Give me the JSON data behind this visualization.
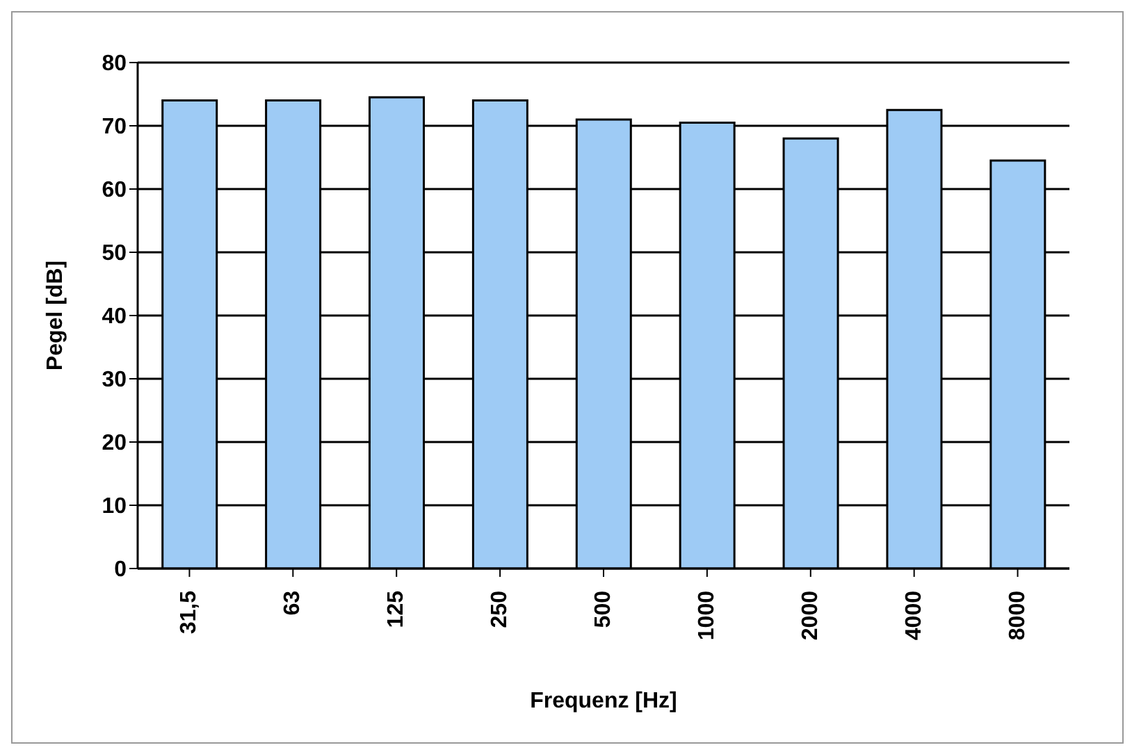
{
  "chart_data": {
    "type": "bar",
    "xlabel": "Frequenz [Hz]",
    "ylabel": "Pegel [dB]",
    "categories": [
      "31,5",
      "63",
      "125",
      "250",
      "500",
      "1000",
      "2000",
      "4000",
      "8000"
    ],
    "series": [
      {
        "color": "#9ecbf5",
        "values": [
          74,
          74,
          74.5,
          74,
          71,
          70.5,
          68,
          72.5,
          64.5
        ]
      }
    ],
    "ylim": [
      0,
      80
    ],
    "yticks": [
      0,
      10,
      20,
      30,
      40,
      50,
      60,
      70,
      80
    ],
    "grid": "y",
    "legend": false
  }
}
